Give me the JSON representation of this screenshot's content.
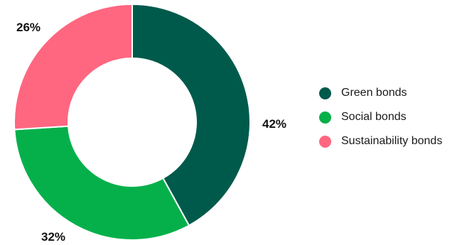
{
  "chart_data": {
    "type": "pie",
    "categories": [
      "Green bonds",
      "Social bonds",
      "Sustainability bonds"
    ],
    "values": [
      42,
      32,
      26
    ],
    "value_labels": [
      "42%",
      "32%",
      "26%"
    ],
    "colors": [
      "#005a4b",
      "#05b04b",
      "#ff6680"
    ],
    "donut": true,
    "legend_position": "right"
  }
}
